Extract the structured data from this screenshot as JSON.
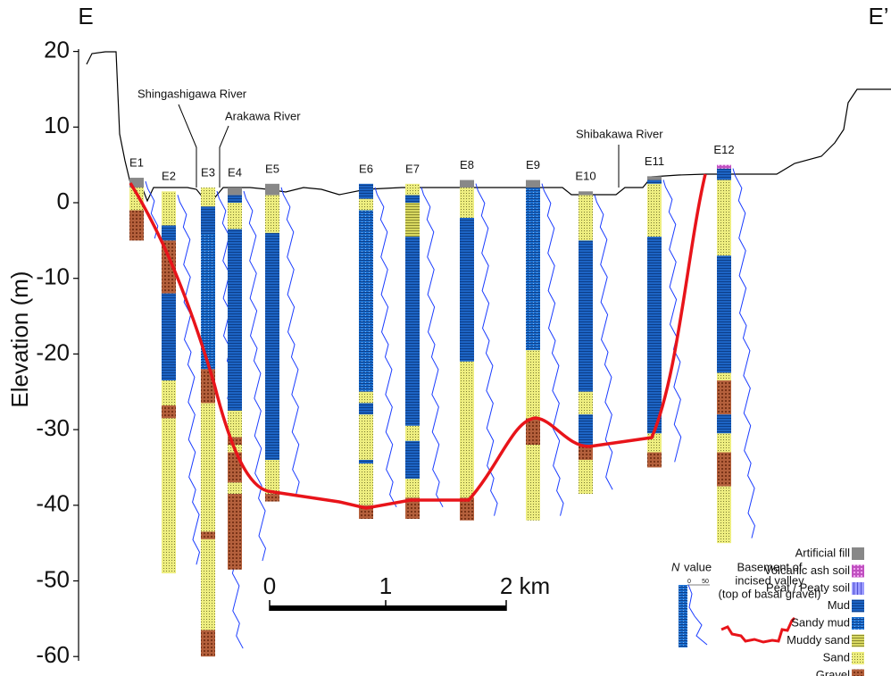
{
  "section": {
    "start": "E",
    "end": "E’"
  },
  "axis": {
    "label": "Elevation (m)",
    "ticks": [
      20,
      10,
      0,
      -10,
      -20,
      -30,
      -40,
      -50,
      -60
    ]
  },
  "rivers": [
    "Shingashigawa River",
    "Arakawa River",
    "Shibakawa River"
  ],
  "legend": [
    "Artificial fill",
    "Volcanic ash soil",
    "Peat / Peaty soil",
    "Mud",
    "Sandy mud",
    "Muddy sand",
    "Sand",
    "Gravel"
  ],
  "boreholes": [
    {
      "label": "E1",
      "layers": [
        [
          0,
          3.3,
          2
        ],
        [
          6,
          2,
          -1
        ],
        [
          7,
          -1,
          -5
        ]
      ]
    },
    {
      "label": "E2",
      "layers": [
        [
          6,
          1.5,
          -3
        ],
        [
          3,
          -3,
          -5
        ],
        [
          7,
          -5,
          -12
        ],
        [
          3,
          -12,
          -23.5
        ],
        [
          6,
          -23.5,
          -26.8
        ],
        [
          7,
          -26.8,
          -28.5
        ],
        [
          6,
          -28.5,
          -49
        ]
      ]
    },
    {
      "label": "E3",
      "layers": [
        [
          6,
          2,
          -0.5
        ],
        [
          3,
          -0.5,
          -4
        ],
        [
          4,
          -4,
          -22
        ],
        [
          7,
          -22,
          -26.5
        ],
        [
          6,
          -26.5,
          -43.5
        ],
        [
          7,
          -43.5,
          -44.5
        ],
        [
          6,
          -44.5,
          -56.5
        ],
        [
          7,
          -56.5,
          -60
        ]
      ]
    },
    {
      "label": "E4",
      "layers": [
        [
          0,
          2,
          1
        ],
        [
          3,
          1,
          0
        ],
        [
          6,
          0,
          -3.5
        ],
        [
          3,
          -3.5,
          -27.5
        ],
        [
          6,
          -27.5,
          -31
        ],
        [
          7,
          -31,
          -32
        ],
        [
          6,
          -32,
          -33
        ],
        [
          7,
          -33,
          -37
        ],
        [
          6,
          -37,
          -38.5
        ],
        [
          7,
          -38.5,
          -48.5
        ]
      ]
    },
    {
      "label": "E5",
      "layers": [
        [
          0,
          2.5,
          1
        ],
        [
          6,
          1,
          -4
        ],
        [
          3,
          -4,
          -34
        ],
        [
          6,
          -34,
          -38.5
        ],
        [
          7,
          -38.5,
          -39.5
        ]
      ]
    },
    {
      "label": "E6",
      "layers": [
        [
          3,
          2.5,
          0.5
        ],
        [
          6,
          0.5,
          -1
        ],
        [
          4,
          -1,
          -25
        ],
        [
          6,
          -25,
          -26.5
        ],
        [
          3,
          -26.5,
          -28
        ],
        [
          6,
          -28,
          -34
        ],
        [
          3,
          -34,
          -34.5
        ],
        [
          6,
          -34.5,
          -40
        ],
        [
          7,
          -40,
          -41.8
        ]
      ]
    },
    {
      "label": "E7",
      "layers": [
        [
          6,
          2.5,
          1
        ],
        [
          3,
          1,
          0
        ],
        [
          5,
          0,
          -4.5
        ],
        [
          3,
          -4.5,
          -29.5
        ],
        [
          6,
          -29.5,
          -31.5
        ],
        [
          3,
          -31.5,
          -36.5
        ],
        [
          6,
          -36.5,
          -39
        ],
        [
          7,
          -39,
          -41.8
        ]
      ]
    },
    {
      "label": "E8",
      "layers": [
        [
          0,
          3,
          2
        ],
        [
          6,
          2,
          -2
        ],
        [
          3,
          -2,
          -21
        ],
        [
          6,
          -21,
          -39
        ],
        [
          7,
          -39,
          -42
        ]
      ]
    },
    {
      "label": "E9",
      "layers": [
        [
          0,
          3,
          2
        ],
        [
          4,
          2,
          -19.5
        ],
        [
          6,
          -19.5,
          -28.5
        ],
        [
          7,
          -28.5,
          -32
        ],
        [
          6,
          -32,
          -42
        ]
      ]
    },
    {
      "label": "E10",
      "layers": [
        [
          0,
          1.5,
          1
        ],
        [
          6,
          1,
          -5
        ],
        [
          3,
          -5,
          -25
        ],
        [
          6,
          -25,
          -28
        ],
        [
          3,
          -28,
          -32
        ],
        [
          7,
          -32,
          -34
        ],
        [
          6,
          -34,
          -38.5
        ]
      ]
    },
    {
      "label": "E11",
      "layers": [
        [
          0,
          3.5,
          3
        ],
        [
          3,
          3,
          2.5
        ],
        [
          6,
          2.5,
          -4.5
        ],
        [
          3,
          -4.5,
          -30.5
        ],
        [
          6,
          -30.5,
          -33
        ],
        [
          7,
          -33,
          -35
        ]
      ]
    },
    {
      "label": "E12",
      "layers": [
        [
          1,
          5,
          4.5
        ],
        [
          3,
          4.5,
          3
        ],
        [
          6,
          3,
          -7
        ],
        [
          3,
          -7,
          -22.5
        ],
        [
          6,
          -22.5,
          -23.5
        ],
        [
          7,
          -23.5,
          -28
        ],
        [
          3,
          -28,
          -30.5
        ],
        [
          6,
          -30.5,
          -33
        ],
        [
          7,
          -33,
          -37.5
        ],
        [
          6,
          -37.5,
          -45
        ]
      ]
    }
  ],
  "scale_bar": [
    "0",
    "1",
    "2 km"
  ],
  "n_value": {
    "symbol": "N",
    "label": "value",
    "ticks": [
      "0",
      "50"
    ]
  },
  "basement": [
    "Basement of",
    "incised valley",
    "(top of basal gravel)"
  ]
}
